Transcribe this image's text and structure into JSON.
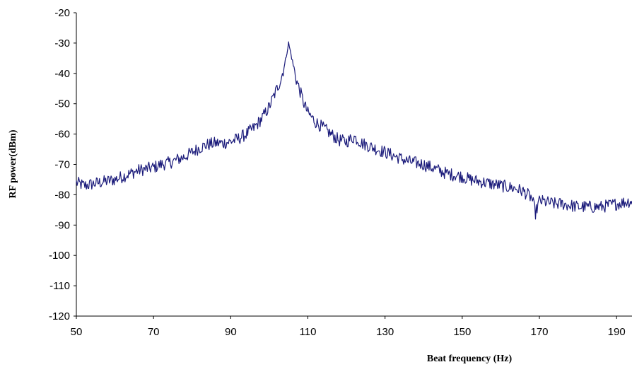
{
  "chart_data": {
    "type": "line",
    "title": "",
    "xlabel": "Beat frequency (Hz)",
    "ylabel": "RF power(dBm)",
    "xlim": [
      50,
      194
    ],
    "ylim": [
      -120,
      -20
    ],
    "x_ticks": [
      50,
      70,
      90,
      110,
      130,
      150,
      170,
      190
    ],
    "y_ticks": [
      -20,
      -30,
      -40,
      -50,
      -60,
      -70,
      -80,
      -90,
      -100,
      -110,
      -120
    ],
    "grid": false,
    "legend": "none",
    "series": [
      {
        "color": "#1a1a7a",
        "x": [
          50,
          52,
          54,
          56,
          58,
          60,
          62,
          64,
          66,
          68,
          70,
          72,
          74,
          76,
          78,
          80,
          82,
          84,
          86,
          88,
          90,
          92,
          94,
          96,
          98,
          100,
          101,
          102,
          103,
          104,
          105,
          106,
          107,
          108,
          109,
          110,
          112,
          114,
          116,
          118,
          120,
          122,
          124,
          126,
          128,
          130,
          132,
          134,
          136,
          138,
          140,
          142,
          144,
          146,
          148,
          150,
          152,
          154,
          156,
          158,
          160,
          162,
          164,
          166,
          168,
          169,
          170,
          172,
          174,
          176,
          178,
          180,
          182,
          184,
          186,
          188,
          190,
          192,
          194
        ],
        "y": [
          -76,
          -77,
          -76.5,
          -76,
          -75.5,
          -75,
          -74,
          -73,
          -72,
          -71.5,
          -71,
          -70,
          -69.5,
          -68.5,
          -67.5,
          -66,
          -64.5,
          -63.5,
          -63,
          -63,
          -62.5,
          -61.5,
          -60,
          -58,
          -55,
          -51,
          -48,
          -45,
          -42,
          -37,
          -30,
          -36,
          -42,
          -46,
          -50,
          -53,
          -56,
          -58,
          -60,
          -62,
          -62.5,
          -61,
          -63,
          -64,
          -65,
          -66,
          -67,
          -68,
          -69,
          -69.5,
          -70,
          -71,
          -72,
          -73,
          -73.5,
          -74,
          -75,
          -75.5,
          -76,
          -76.5,
          -77,
          -77.5,
          -78,
          -79,
          -81,
          -86,
          -82,
          -82.5,
          -83,
          -83,
          -83.5,
          -84,
          -84,
          -84,
          -84,
          -83.5,
          -83,
          -82.5,
          -82
        ]
      }
    ]
  }
}
